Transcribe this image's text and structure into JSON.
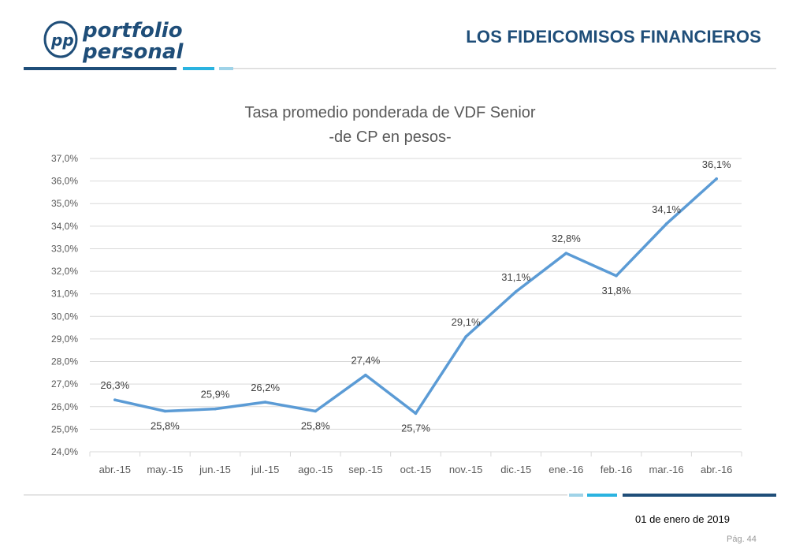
{
  "brand": {
    "name_line1": "portfolio",
    "name_line2": "personal",
    "monogram": "pp",
    "colors": {
      "dark": "#1f4e79",
      "mid": "#2ab3e0",
      "light": "#9fd3e8"
    }
  },
  "header": {
    "title": "LOS FIDEICOMISOS FINANCIEROS"
  },
  "footer": {
    "date": "01 de enero de 2019",
    "page_label": "Pág. 44"
  },
  "chart_data": {
    "type": "line",
    "title": "Tasa promedio ponderada de VDF Senior",
    "subtitle": "-de CP en pesos-",
    "categories": [
      "abr.-15",
      "may.-15",
      "jun.-15",
      "jul.-15",
      "ago.-15",
      "sep.-15",
      "oct.-15",
      "nov.-15",
      "dic.-15",
      "ene.-16",
      "feb.-16",
      "mar.-16",
      "abr.-16"
    ],
    "series": [
      {
        "color": "#5b9bd5",
        "values": [
          26.3,
          25.8,
          25.9,
          26.2,
          25.8,
          27.4,
          25.7,
          29.1,
          31.1,
          32.8,
          31.8,
          34.1,
          36.1
        ],
        "labels": [
          "26,3%",
          "25,8%",
          "25,9%",
          "26,2%",
          "25,8%",
          "27,4%",
          "25,7%",
          "29,1%",
          "31,1%",
          "32,8%",
          "31,8%",
          "34,1%",
          "36,1%"
        ]
      }
    ],
    "ylim": [
      24,
      37
    ],
    "y_ticks": [
      24,
      25,
      26,
      27,
      28,
      29,
      30,
      31,
      32,
      33,
      34,
      35,
      36,
      37
    ],
    "y_tick_labels": [
      "24,0%",
      "25,0%",
      "26,0%",
      "27,0%",
      "28,0%",
      "29,0%",
      "30,0%",
      "31,0%",
      "32,0%",
      "33,0%",
      "34,0%",
      "35,0%",
      "36,0%",
      "37,0%"
    ],
    "grid": true,
    "legend": "none"
  }
}
